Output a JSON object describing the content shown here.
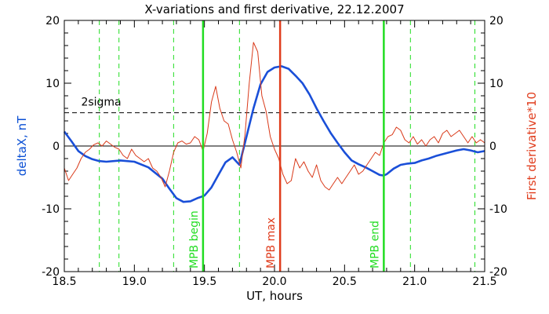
{
  "chart_data": {
    "type": "line",
    "title": "X-variations and first derivative, 22.12.2007",
    "xlabel": "UT, hours",
    "ylabel_left": "deltaX, nT",
    "ylabel_right": "First derivative*10",
    "xlim": [
      18.5,
      21.5
    ],
    "ylim": [
      -20,
      20
    ],
    "x_ticks": [
      18.5,
      19.0,
      19.5,
      20.0,
      20.5,
      21.0,
      21.5
    ],
    "x_tick_labels": [
      "18.5",
      "19.0",
      "19.5",
      "20.0",
      "20.5",
      "21.0",
      "21.5"
    ],
    "y_ticks": [
      -20,
      -10,
      0,
      10,
      20
    ],
    "y_tick_labels": [
      "-20",
      "-10",
      "0",
      "10",
      "20"
    ],
    "y_ticks_right": [
      -20,
      -10,
      0,
      10,
      20
    ],
    "y_tick_labels_right": [
      "-20",
      "-10",
      "0",
      "10",
      "20"
    ],
    "colors": {
      "deltax": "#1a4fd8",
      "derivative": "#d93a1a",
      "mpb_begin_end": "#22dd22",
      "mpb_max": "#e03c1c",
      "dashed_green": "#22dd22",
      "sigma": "#000000",
      "zero": "#000000"
    },
    "series": [
      {
        "name": "deltaX",
        "axis": "left",
        "x": [
          18.5,
          18.55,
          18.6,
          18.65,
          18.7,
          18.75,
          18.8,
          18.9,
          19.0,
          19.1,
          19.2,
          19.25,
          19.3,
          19.35,
          19.4,
          19.45,
          19.5,
          19.55,
          19.6,
          19.65,
          19.7,
          19.75,
          19.8,
          19.85,
          19.9,
          19.95,
          20.0,
          20.05,
          20.1,
          20.15,
          20.2,
          20.25,
          20.3,
          20.35,
          20.4,
          20.45,
          20.5,
          20.55,
          20.6,
          20.65,
          20.7,
          20.75,
          20.78,
          20.8,
          20.85,
          20.9,
          20.95,
          21.0,
          21.05,
          21.1,
          21.15,
          21.2,
          21.25,
          21.3,
          21.35,
          21.4,
          21.45,
          21.5
        ],
        "y": [
          2.3,
          0.8,
          -0.8,
          -1.6,
          -2.1,
          -2.4,
          -2.5,
          -2.3,
          -2.5,
          -3.4,
          -5.2,
          -6.8,
          -8.3,
          -8.9,
          -8.8,
          -8.3,
          -7.9,
          -6.6,
          -4.6,
          -2.6,
          -1.8,
          -3.0,
          1.5,
          6.0,
          9.8,
          11.8,
          12.5,
          12.7,
          12.3,
          11.2,
          10.0,
          8.2,
          6.0,
          4.0,
          2.1,
          0.5,
          -1.0,
          -2.3,
          -2.9,
          -3.4,
          -4.0,
          -4.6,
          -4.7,
          -4.5,
          -3.6,
          -3.0,
          -2.8,
          -2.7,
          -2.3,
          -2.0,
          -1.6,
          -1.3,
          -1.0,
          -0.7,
          -0.5,
          -0.7,
          -1.0,
          -0.8
        ]
      },
      {
        "name": "First derivative*10",
        "axis": "right",
        "x": [
          18.5,
          18.53,
          18.56,
          18.59,
          18.62,
          18.65,
          18.68,
          18.71,
          18.74,
          18.77,
          18.8,
          18.83,
          18.86,
          18.89,
          18.92,
          18.95,
          18.98,
          19.01,
          19.04,
          19.07,
          19.1,
          19.13,
          19.16,
          19.19,
          19.22,
          19.25,
          19.28,
          19.31,
          19.34,
          19.37,
          19.4,
          19.43,
          19.46,
          19.49,
          19.52,
          19.55,
          19.58,
          19.61,
          19.64,
          19.67,
          19.7,
          19.73,
          19.76,
          19.79,
          19.82,
          19.85,
          19.88,
          19.91,
          19.94,
          19.97,
          20.0,
          20.03,
          20.06,
          20.09,
          20.12,
          20.15,
          20.18,
          20.21,
          20.24,
          20.27,
          20.3,
          20.33,
          20.36,
          20.39,
          20.42,
          20.45,
          20.48,
          20.51,
          20.54,
          20.57,
          20.6,
          20.63,
          20.66,
          20.69,
          20.72,
          20.75,
          20.78,
          20.81,
          20.84,
          20.87,
          20.9,
          20.93,
          20.96,
          20.99,
          21.02,
          21.05,
          21.08,
          21.11,
          21.14,
          21.17,
          21.2,
          21.23,
          21.26,
          21.29,
          21.32,
          21.35,
          21.38,
          21.41,
          21.44,
          21.47,
          21.5
        ],
        "y": [
          -3.5,
          -5.5,
          -4.5,
          -3.5,
          -2.0,
          -1.0,
          -0.5,
          0.2,
          0.5,
          0.0,
          0.8,
          0.3,
          -0.2,
          -0.5,
          -1.5,
          -2.0,
          -0.5,
          -1.5,
          -2.0,
          -2.5,
          -2.0,
          -3.5,
          -4.0,
          -5.0,
          -6.5,
          -4.0,
          -1.0,
          0.5,
          0.8,
          0.3,
          0.5,
          1.5,
          1.0,
          -0.8,
          2.0,
          7.0,
          9.5,
          6.0,
          4.0,
          3.5,
          1.0,
          -1.0,
          -3.5,
          2.0,
          10.0,
          16.5,
          15.0,
          8.0,
          5.5,
          1.5,
          -0.5,
          -2.0,
          -4.5,
          -6.0,
          -5.5,
          -2.0,
          -3.5,
          -2.5,
          -4.0,
          -5.0,
          -3.0,
          -5.5,
          -6.5,
          -7.0,
          -6.0,
          -5.0,
          -6.0,
          -5.0,
          -4.0,
          -3.0,
          -4.5,
          -4.0,
          -3.0,
          -2.0,
          -1.0,
          -1.5,
          0.5,
          1.5,
          1.8,
          3.0,
          2.5,
          1.0,
          0.5,
          1.5,
          0.3,
          1.0,
          0.0,
          1.0,
          1.5,
          0.5,
          2.0,
          2.5,
          1.5,
          2.0,
          2.5,
          1.5,
          0.5,
          1.5,
          0.5,
          1.0,
          0.5
        ]
      }
    ],
    "reference_lines": {
      "zero": 0,
      "sigma": 5.3,
      "sigma_label": "2sigma"
    },
    "dashed_green_lines_x": [
      18.75,
      18.89,
      19.28,
      19.75,
      20.97,
      21.43
    ],
    "event_lines": [
      {
        "label": "MPB begin",
        "x": 19.49,
        "kind": "begin_end"
      },
      {
        "label": "MPB max",
        "x": 20.04,
        "kind": "max"
      },
      {
        "label": "MPB end",
        "x": 20.78,
        "kind": "begin_end"
      }
    ],
    "grid": false,
    "legend": "none"
  }
}
